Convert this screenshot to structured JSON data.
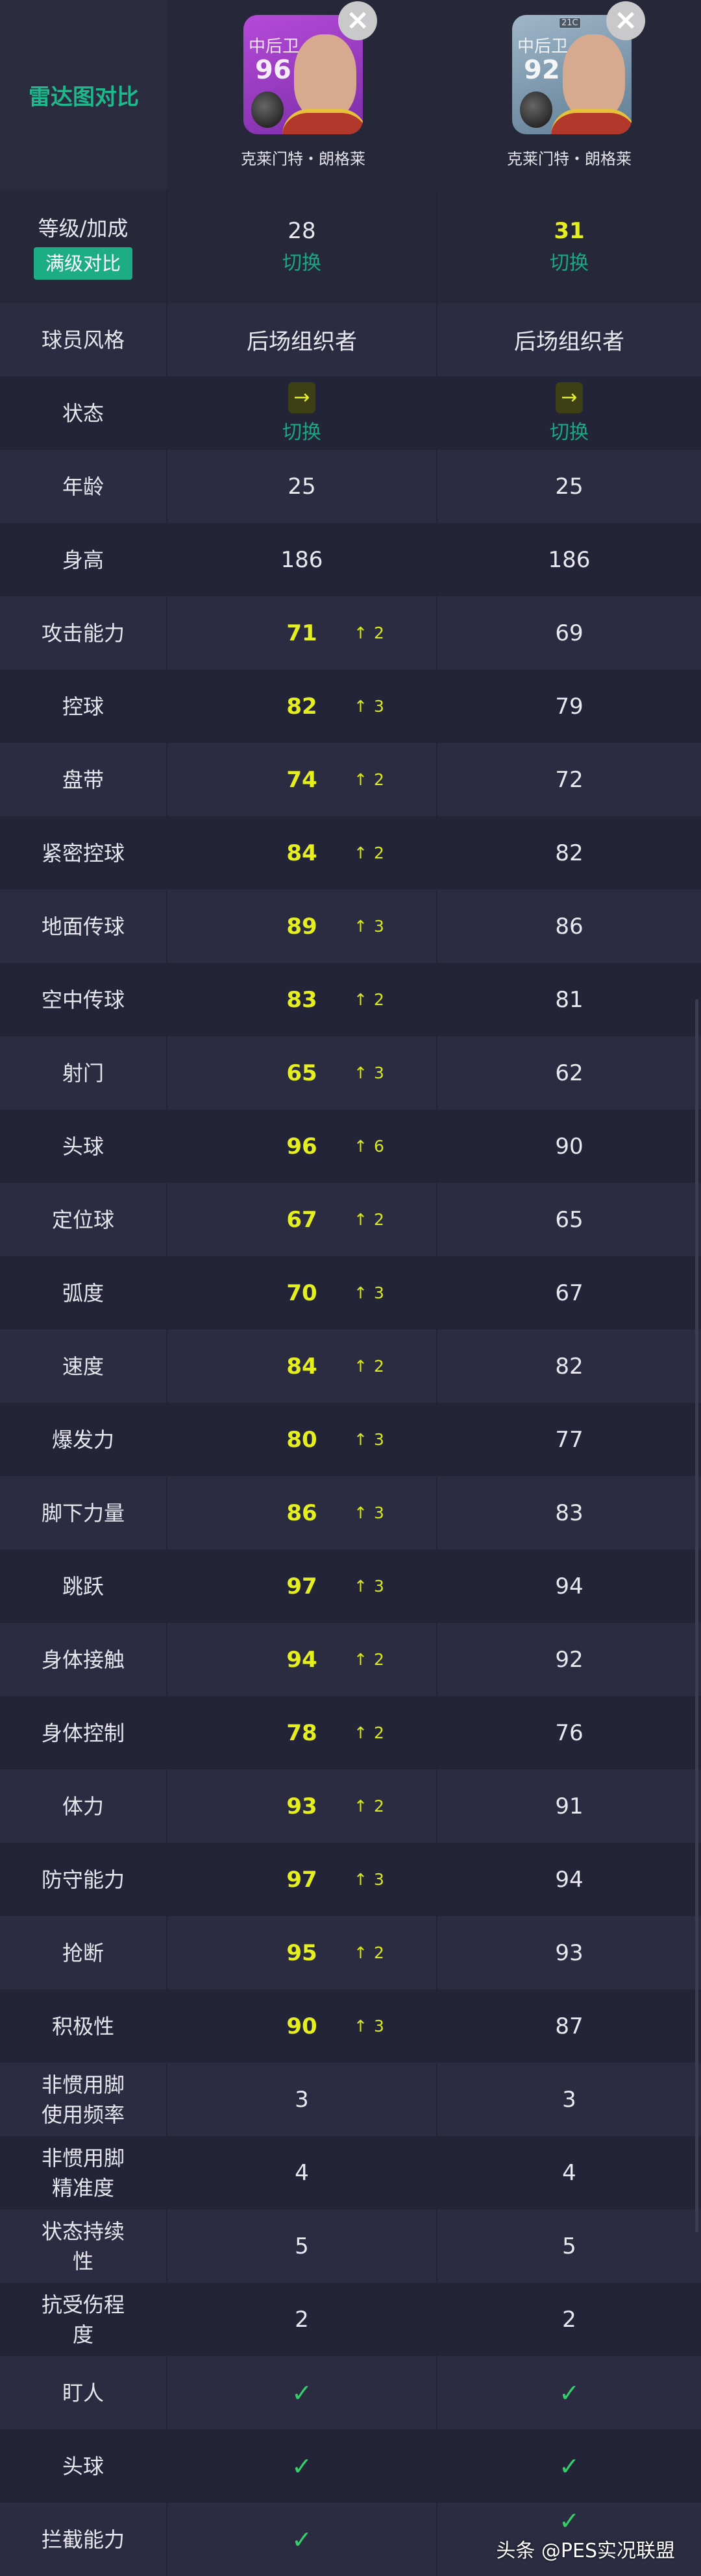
{
  "header": {
    "radar_label": "雷达图对比",
    "players": [
      {
        "position": "中后卫",
        "rating": "96",
        "name": "克莱门特・朗格莱",
        "tag": ""
      },
      {
        "position": "中后卫",
        "rating": "92",
        "name": "克莱门特・朗格莱",
        "tag": "21C"
      }
    ],
    "close_icon": "×"
  },
  "level_row": {
    "label": "等级/加成",
    "full_button": "满级对比",
    "values": [
      "28",
      "31"
    ],
    "switch": "切换"
  },
  "style_row": {
    "label": "球员风格",
    "values": [
      "后场组织者",
      "后场组织者"
    ]
  },
  "condition_row": {
    "label": "状态",
    "icon": "→",
    "switch": "切换"
  },
  "basic_rows": [
    {
      "label": "年龄",
      "values": [
        "25",
        "25"
      ]
    },
    {
      "label": "身高",
      "values": [
        "186",
        "186"
      ]
    }
  ],
  "stat_rows": [
    {
      "label": "攻击能力",
      "a": "71",
      "delta": "2",
      "b": "69"
    },
    {
      "label": "控球",
      "a": "82",
      "delta": "3",
      "b": "79"
    },
    {
      "label": "盘带",
      "a": "74",
      "delta": "2",
      "b": "72"
    },
    {
      "label": "紧密控球",
      "a": "84",
      "delta": "2",
      "b": "82"
    },
    {
      "label": "地面传球",
      "a": "89",
      "delta": "3",
      "b": "86"
    },
    {
      "label": "空中传球",
      "a": "83",
      "delta": "2",
      "b": "81"
    },
    {
      "label": "射门",
      "a": "65",
      "delta": "3",
      "b": "62"
    },
    {
      "label": "头球",
      "a": "96",
      "delta": "6",
      "b": "90"
    },
    {
      "label": "定位球",
      "a": "67",
      "delta": "2",
      "b": "65"
    },
    {
      "label": "弧度",
      "a": "70",
      "delta": "3",
      "b": "67"
    },
    {
      "label": "速度",
      "a": "84",
      "delta": "2",
      "b": "82"
    },
    {
      "label": "爆发力",
      "a": "80",
      "delta": "3",
      "b": "77"
    },
    {
      "label": "脚下力量",
      "a": "86",
      "delta": "3",
      "b": "83"
    },
    {
      "label": "跳跃",
      "a": "97",
      "delta": "3",
      "b": "94"
    },
    {
      "label": "身体接触",
      "a": "94",
      "delta": "2",
      "b": "92"
    },
    {
      "label": "身体控制",
      "a": "78",
      "delta": "2",
      "b": "76"
    },
    {
      "label": "体力",
      "a": "93",
      "delta": "2",
      "b": "91"
    },
    {
      "label": "防守能力",
      "a": "97",
      "delta": "3",
      "b": "94"
    },
    {
      "label": "抢断",
      "a": "95",
      "delta": "2",
      "b": "93"
    },
    {
      "label": "积极性",
      "a": "90",
      "delta": "3",
      "b": "87"
    }
  ],
  "extra_rows": [
    {
      "label": "非惯用脚\n使用频率",
      "values": [
        "3",
        "3"
      ]
    },
    {
      "label": "非惯用脚\n精准度",
      "values": [
        "4",
        "4"
      ]
    },
    {
      "label": "状态持续\n性",
      "values": [
        "5",
        "5"
      ]
    },
    {
      "label": "抗受伤程\n度",
      "values": [
        "2",
        "2"
      ]
    }
  ],
  "skill_rows": [
    {
      "label": "盯人",
      "values": [
        true,
        true
      ]
    },
    {
      "label": "头球",
      "values": [
        true,
        true
      ]
    },
    {
      "label": "拦截能力",
      "values": [
        true,
        true
      ]
    }
  ],
  "watermark": "头条 @PES实况联盟",
  "colors": {
    "accent": "#1fb88a",
    "highlight": "#e6ef1e",
    "check": "#35cf6a",
    "bg": "#27283b"
  }
}
